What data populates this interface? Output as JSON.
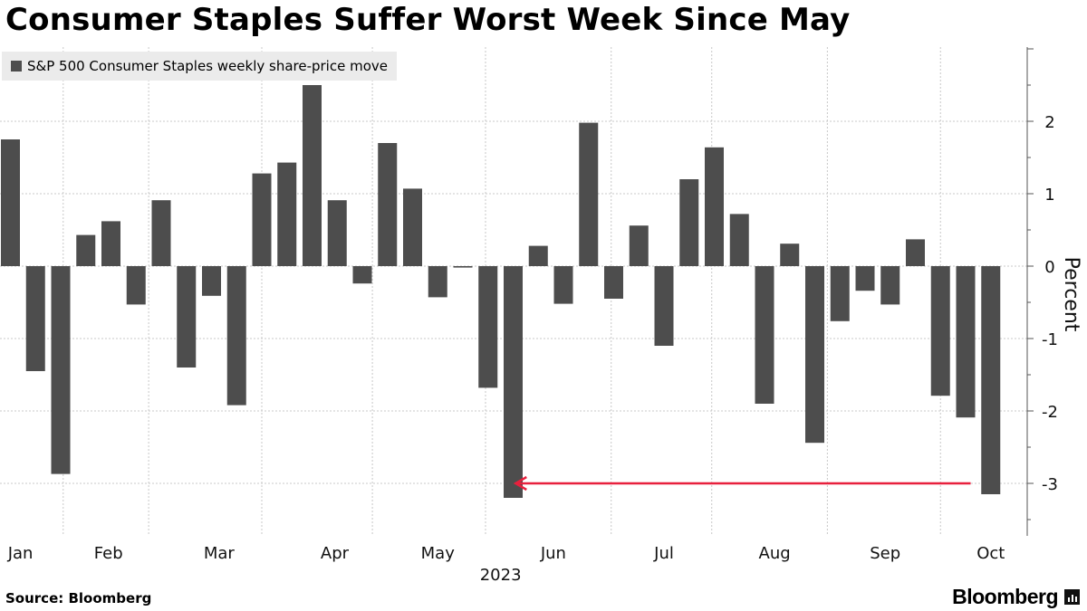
{
  "header": {
    "title": "Consumer Staples Suffer Worst Week Since May"
  },
  "legend": {
    "label": "S&P 500 Consumer Staples weekly share-price move",
    "color": "#4d4d4d"
  },
  "footer": {
    "source": "Source: Bloomberg",
    "brand": "Bloomberg"
  },
  "chart_data": {
    "type": "bar",
    "title": "Consumer Staples Suffer Worst Week Since May",
    "series": [
      {
        "name": "S&P 500 Consumer Staples weekly share-price move",
        "values": [
          1.75,
          -1.45,
          -2.87,
          0.43,
          0.62,
          -0.53,
          0.91,
          -1.4,
          -0.41,
          -1.92,
          1.28,
          1.43,
          2.5,
          0.91,
          -0.24,
          1.7,
          1.07,
          -0.43,
          -0.02,
          -1.68,
          -3.2,
          0.28,
          -0.52,
          1.98,
          -0.45,
          0.56,
          -1.1,
          1.2,
          1.64,
          0.72,
          -1.9,
          0.31,
          -2.44,
          -0.76,
          -0.34,
          -0.53,
          0.37,
          -1.79,
          -2.09,
          -3.15
        ]
      }
    ],
    "xlabel": "2023",
    "ylabel": "Percent",
    "ylim": [
      -3.75,
      3.0
    ],
    "yticks": [
      2,
      1,
      0,
      -1,
      -2,
      -3
    ],
    "ytick_labels": [
      "2",
      "1",
      "0",
      "-1",
      "-2",
      "-3"
    ],
    "month_labels": [
      {
        "label": "Jan",
        "week": 1.4
      },
      {
        "label": "Feb",
        "week": 4.9
      },
      {
        "label": "Mar",
        "week": 9.3
      },
      {
        "label": "Apr",
        "week": 13.9
      },
      {
        "label": "May",
        "week": 18.0
      },
      {
        "label": "Jun",
        "week": 22.6
      },
      {
        "label": "Jul",
        "week": 27.0
      },
      {
        "label": "Aug",
        "week": 31.4
      },
      {
        "label": "Sep",
        "week": 35.8
      },
      {
        "label": "Oct",
        "week": 40.0
      }
    ],
    "month_gridlines": [
      3.1,
      6.5,
      11.0,
      15.4,
      19.9,
      24.9,
      28.9,
      33.5,
      38.0
    ],
    "year_label": {
      "label": "2023",
      "week": 20.5
    },
    "annotation": {
      "type": "arrow",
      "from_week": 39.2,
      "to_week": 21.1,
      "y": -3.0,
      "color": "#e8203d"
    },
    "grid": true,
    "legend": "top-left"
  }
}
